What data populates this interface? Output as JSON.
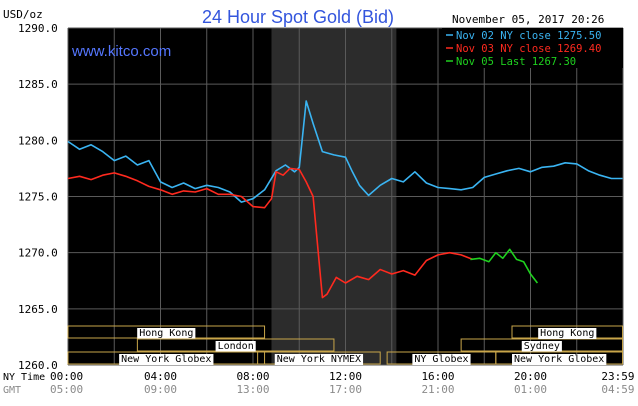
{
  "chart_data": {
    "type": "line",
    "title": "24 Hour Spot Gold (Bid)",
    "brand": "www.kitco.com",
    "date_label": "November 05, 2017 20:26",
    "ylabel": "USD/oz",
    "ylim": [
      1260,
      1290
    ],
    "yticks": [
      "1290.0",
      "1285.0",
      "1280.0",
      "1275.0",
      "1270.0",
      "1265.0",
      "1260.0"
    ],
    "ytick_values": [
      1290,
      1285,
      1280,
      1275,
      1270,
      1265,
      1260
    ],
    "xlim": [
      0,
      24
    ],
    "x_rows": [
      {
        "label": "NY Time",
        "ticks": [
          "00:00",
          "04:00",
          "08:00",
          "12:00",
          "16:00",
          "20:00",
          "23:59"
        ]
      },
      {
        "label": "GMT",
        "ticks": [
          "05:00",
          "09:00",
          "13:00",
          "17:00",
          "21:00",
          "01:00",
          "04:59"
        ]
      }
    ],
    "xtick_hours": [
      0,
      4,
      8,
      12,
      16,
      20,
      23.98
    ],
    "highlight_band": [
      8.8,
      14.2
    ],
    "sessions": [
      {
        "name": "Hong Kong",
        "start": 0,
        "end": 8.5,
        "row": 0
      },
      {
        "name": "London",
        "start": 3,
        "end": 11.5,
        "row": 1
      },
      {
        "name": "New York Globex",
        "start": 0,
        "end": 8.5,
        "row": 2
      },
      {
        "name": "New York NYMEX",
        "start": 8.2,
        "end": 13.5,
        "row": 2
      },
      {
        "name": "NY Globex",
        "start": 13.8,
        "end": 18.5,
        "row": 2
      },
      {
        "name": "Sydney",
        "start": 17,
        "end": 23.98,
        "row": 1
      },
      {
        "name": "Hong Kong",
        "start": 19.2,
        "end": 23.98,
        "row": 0
      },
      {
        "name": "New York Globex",
        "start": 18.5,
        "end": 23.98,
        "row": 2
      }
    ],
    "series": [
      {
        "name": "Nov 02 NY close 1275.50",
        "color": "#3ab4f2",
        "x": [
          0,
          0.5,
          1,
          1.5,
          2,
          2.5,
          3,
          3.5,
          4,
          4.5,
          5,
          5.5,
          6,
          6.5,
          7,
          7.5,
          8,
          8.5,
          9,
          9.4,
          9.8,
          10,
          10.3,
          10.6,
          11,
          11.5,
          12,
          12.3,
          12.6,
          13,
          13.5,
          14,
          14.5,
          15,
          15.5,
          16,
          16.5,
          17,
          17.5,
          18,
          18.5,
          19,
          19.5,
          20,
          20.5,
          21,
          21.5,
          22,
          22.5,
          23,
          23.5,
          23.98
        ],
        "values": [
          1279.9,
          1279.2,
          1279.6,
          1279.0,
          1278.2,
          1278.6,
          1277.8,
          1278.2,
          1276.3,
          1275.8,
          1276.2,
          1275.7,
          1276.0,
          1275.8,
          1275.4,
          1274.5,
          1274.8,
          1275.6,
          1277.3,
          1277.8,
          1277.2,
          1277.6,
          1283.5,
          1281.5,
          1279.0,
          1278.7,
          1278.5,
          1277.2,
          1276.0,
          1275.1,
          1276.0,
          1276.6,
          1276.3,
          1277.2,
          1276.2,
          1275.8,
          1275.7,
          1275.6,
          1275.8,
          1276.7,
          1277.0,
          1277.3,
          1277.5,
          1277.2,
          1277.6,
          1277.7,
          1278.0,
          1277.9,
          1277.3,
          1276.9,
          1276.6,
          1276.6
        ]
      },
      {
        "name": "Nov 03 NY close 1269.40",
        "color": "#ff2a1f",
        "x": [
          0,
          0.5,
          1,
          1.5,
          2,
          2.5,
          3,
          3.5,
          4,
          4.5,
          5,
          5.5,
          6,
          6.5,
          7,
          7.5,
          8,
          8.5,
          8.8,
          9,
          9.3,
          9.6,
          10,
          10.3,
          10.6,
          11,
          11.2,
          11.6,
          12,
          12.5,
          13,
          13.5,
          14,
          14.5,
          15,
          15.5,
          16,
          16.5,
          17,
          17.5
        ],
        "values": [
          1276.6,
          1276.8,
          1276.5,
          1276.9,
          1277.1,
          1276.8,
          1276.4,
          1275.9,
          1275.6,
          1275.2,
          1275.5,
          1275.4,
          1275.7,
          1275.2,
          1275.2,
          1275.0,
          1274.1,
          1274.0,
          1274.8,
          1277.2,
          1276.9,
          1277.5,
          1277.4,
          1276.3,
          1275.0,
          1266.0,
          1266.3,
          1267.8,
          1267.3,
          1267.9,
          1267.6,
          1268.5,
          1268.1,
          1268.4,
          1268.0,
          1269.3,
          1269.8,
          1270.0,
          1269.8,
          1269.4
        ]
      },
      {
        "name": "Nov 05 Last 1267.30",
        "color": "#1fd11f",
        "x": [
          17.4,
          17.8,
          18.2,
          18.5,
          18.8,
          19.1,
          19.4,
          19.7,
          20.0,
          20.3
        ],
        "values": [
          1269.4,
          1269.5,
          1269.2,
          1270.0,
          1269.5,
          1270.3,
          1269.4,
          1269.2,
          1268.1,
          1267.3
        ]
      }
    ]
  }
}
